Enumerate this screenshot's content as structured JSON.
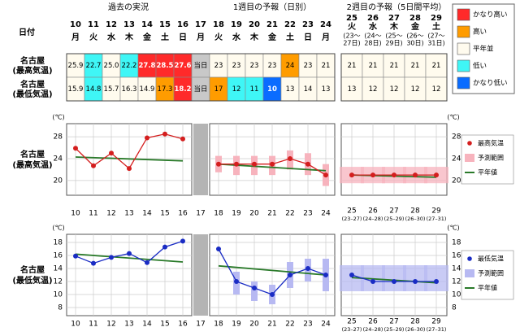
{
  "header": {
    "date_label": "日付",
    "past": "過去の実況",
    "week1": "1週目の予報（日別）",
    "week2": "2週目の予報（5日間平均）"
  },
  "days": [
    {
      "day": "10",
      "weekday": "月"
    },
    {
      "day": "11",
      "weekday": "火"
    },
    {
      "day": "12",
      "weekday": "水"
    },
    {
      "day": "13",
      "weekday": "木"
    },
    {
      "day": "14",
      "weekday": "金"
    },
    {
      "day": "15",
      "weekday": "土"
    },
    {
      "day": "16",
      "weekday": "日"
    },
    {
      "day": "17",
      "weekday": "月"
    },
    {
      "day": "18",
      "weekday": "火"
    },
    {
      "day": "19",
      "weekday": "水"
    },
    {
      "day": "20",
      "weekday": "木"
    },
    {
      "day": "21",
      "weekday": "金"
    },
    {
      "day": "22",
      "weekday": "土"
    },
    {
      "day": "23",
      "weekday": "日"
    },
    {
      "day": "24",
      "weekday": "月"
    }
  ],
  "week2_days": [
    {
      "day": "25",
      "weekday": "火",
      "range_lines": [
        "(23～",
        "27日)"
      ]
    },
    {
      "day": "26",
      "weekday": "水",
      "range_lines": [
        "(24～",
        "28日)"
      ]
    },
    {
      "day": "27",
      "weekday": "木",
      "range_lines": [
        "(25～",
        "29日)"
      ]
    },
    {
      "day": "28",
      "weekday": "金",
      "range_lines": [
        "(26～",
        "30日)"
      ]
    },
    {
      "day": "29",
      "weekday": "土",
      "range_lines": [
        "(27～",
        "31日)"
      ]
    }
  ],
  "legend": [
    {
      "label": "かなり高い",
      "color": "#ff2a2a"
    },
    {
      "label": "高い",
      "color": "#ff9c00"
    },
    {
      "label": "平年並",
      "color": "#fffbee"
    },
    {
      "label": "低い",
      "color": "#3ff6f6"
    },
    {
      "label": "かなり低い",
      "color": "#0a6cff"
    }
  ],
  "table": {
    "rows": [
      {
        "label": [
          "名古屋",
          "(最高気温)"
        ],
        "cells": [
          {
            "text": "25.9",
            "color": "#fffbee"
          },
          {
            "text": "22.7",
            "color": "#3ff6f6"
          },
          {
            "text": "25.0",
            "color": "#fffbee"
          },
          {
            "text": "22.2",
            "color": "#3ff6f6"
          },
          {
            "text": "27.8",
            "color": "#ff2a2a"
          },
          {
            "text": "28.5",
            "color": "#ff2a2a"
          },
          {
            "text": "27.6",
            "color": "#ff2a2a"
          },
          {
            "text": "当日",
            "color": "#c8c8c8"
          },
          {
            "text": "23",
            "color": "#fffbee"
          },
          {
            "text": "23",
            "color": "#fffbee"
          },
          {
            "text": "23",
            "color": "#fffbee"
          },
          {
            "text": "23",
            "color": "#fffbee"
          },
          {
            "text": "24",
            "color": "#ff9c00"
          },
          {
            "text": "23",
            "color": "#fffbee"
          },
          {
            "text": "21",
            "color": "#fffbee"
          }
        ],
        "week2": [
          {
            "text": "21",
            "color": "#fffbee"
          },
          {
            "text": "21",
            "color": "#fffbee"
          },
          {
            "text": "21",
            "color": "#fffbee"
          },
          {
            "text": "21",
            "color": "#fffbee"
          },
          {
            "text": "21",
            "color": "#fffbee"
          }
        ]
      },
      {
        "label": [
          "名古屋",
          "(最低気温)"
        ],
        "cells": [
          {
            "text": "15.9",
            "color": "#fffbee"
          },
          {
            "text": "14.8",
            "color": "#3ff6f6"
          },
          {
            "text": "15.7",
            "color": "#fffbee"
          },
          {
            "text": "16.3",
            "color": "#fffbee"
          },
          {
            "text": "14.9",
            "color": "#fffbee"
          },
          {
            "text": "17.3",
            "color": "#ff9c00"
          },
          {
            "text": "18.2",
            "color": "#ff2a2a"
          },
          {
            "text": "当日",
            "color": "#c8c8c8"
          },
          {
            "text": "17",
            "color": "#ff9c00"
          },
          {
            "text": "12",
            "color": "#3ff6f6"
          },
          {
            "text": "11",
            "color": "#3ff6f6"
          },
          {
            "text": "10",
            "color": "#0a6cff"
          },
          {
            "text": "13",
            "color": "#fffbee"
          },
          {
            "text": "14",
            "color": "#fffbee"
          },
          {
            "text": "13",
            "color": "#fffbee"
          }
        ],
        "week2": [
          {
            "text": "13",
            "color": "#fffbee"
          },
          {
            "text": "12",
            "color": "#fffbee"
          },
          {
            "text": "12",
            "color": "#fffbee"
          },
          {
            "text": "12",
            "color": "#fffbee"
          },
          {
            "text": "12",
            "color": "#fffbee"
          }
        ]
      }
    ]
  },
  "chart_data": [
    {
      "type": "line",
      "unit": "(℃)",
      "label": [
        "名古屋",
        "(最高気温)"
      ],
      "ylim": [
        17.3,
        30.4
      ],
      "yticks": [
        20,
        24,
        28
      ],
      "grid": true,
      "xticks": [
        10,
        11,
        12,
        13,
        14,
        15,
        16,
        17,
        18,
        19,
        20,
        21,
        22,
        23,
        24,
        25,
        26,
        27,
        28,
        29
      ],
      "xtick_notes": [
        "(23–27)",
        "(24–28)",
        "(25–29)",
        "(26–30)",
        "(27–31)"
      ],
      "series": [
        {
          "name": "最高気温",
          "color": "#d41e1e",
          "x": [
            10,
            11,
            12,
            13,
            14,
            15,
            16,
            18,
            19,
            20,
            21,
            22,
            23,
            24,
            25,
            26,
            27,
            28,
            29
          ],
          "values": [
            25.9,
            22.7,
            25.0,
            22.2,
            27.8,
            28.5,
            27.6,
            23,
            23,
            23,
            23,
            24,
            23,
            21,
            21,
            21,
            21,
            21,
            21
          ]
        }
      ],
      "range": {
        "name": "予測範囲",
        "color": "#f7b3bd",
        "x": [
          18,
          19,
          20,
          21,
          22,
          23,
          24,
          25,
          26,
          27,
          28,
          29
        ],
        "low": [
          21.5,
          21,
          21,
          21,
          22,
          21,
          19,
          19.5,
          19.5,
          19.5,
          19.5,
          19.5
        ],
        "high": [
          24.5,
          24.5,
          24.5,
          24.5,
          25.5,
          25,
          23,
          22.5,
          22.5,
          22.5,
          22.5,
          22.5
        ]
      },
      "normal": {
        "name": "平年値",
        "color": "#2a7a2a",
        "x": [
          10,
          16,
          18,
          24,
          25,
          29
        ],
        "values": [
          24.3,
          23.6,
          23.0,
          21.8,
          21.0,
          20.6
        ]
      }
    },
    {
      "type": "line",
      "unit": "(℃)",
      "label": [
        "名古屋",
        "(最低気温)"
      ],
      "ylim": [
        6.75,
        19.25
      ],
      "yticks": [
        8,
        10,
        12,
        14,
        16,
        18
      ],
      "grid": true,
      "xticks": [
        10,
        11,
        12,
        13,
        14,
        15,
        16,
        17,
        18,
        19,
        20,
        21,
        22,
        23,
        24,
        25,
        26,
        27,
        28,
        29
      ],
      "xtick_notes": [
        "(23–27)",
        "(24–28)",
        "(25–29)",
        "(26–30)",
        "(27–31)"
      ],
      "series": [
        {
          "name": "最低気温",
          "color": "#1a2cc4",
          "x": [
            10,
            11,
            12,
            13,
            14,
            15,
            16,
            18,
            19,
            20,
            21,
            22,
            23,
            24,
            25,
            26,
            27,
            28,
            29
          ],
          "values": [
            15.9,
            14.8,
            15.7,
            16.3,
            14.9,
            17.3,
            18.2,
            17,
            12,
            11,
            10,
            13,
            14,
            13,
            13,
            12,
            12,
            12,
            12
          ]
        }
      ],
      "range": {
        "name": "予測範囲",
        "color": "#b7b9f2",
        "x": [
          19,
          20,
          21,
          22,
          23,
          24,
          25,
          26,
          27,
          28,
          29
        ],
        "low": [
          10,
          9,
          8.5,
          11,
          12,
          10.5,
          10.5,
          10.5,
          10.5,
          10.5,
          10.5
        ],
        "high": [
          13.5,
          12,
          11.5,
          15,
          15.5,
          15.5,
          14.5,
          14.5,
          14.5,
          14.5,
          14.5
        ]
      },
      "normal": {
        "name": "平年値",
        "color": "#2a7a2a",
        "x": [
          10,
          16,
          18,
          24,
          25,
          29
        ],
        "values": [
          16.2,
          15.0,
          14.4,
          13.0,
          12.6,
          11.8
        ]
      }
    }
  ]
}
